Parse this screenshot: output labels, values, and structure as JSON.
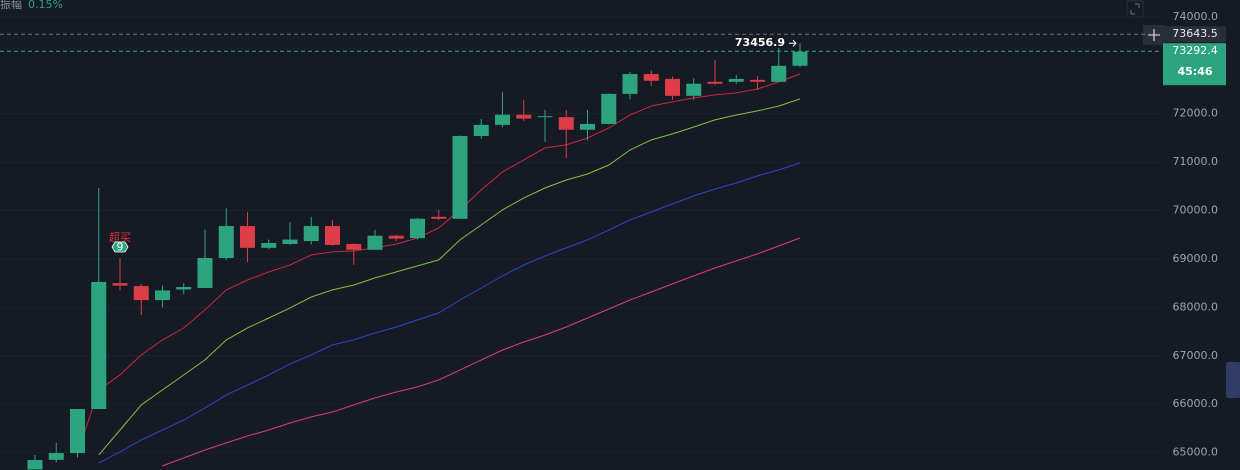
{
  "chart_data": {
    "type": "candlestick",
    "amplitude_label": "振幅",
    "amplitude_value": "0.15%",
    "ylim": [
      64640,
      74350
    ],
    "yticks": [
      {
        "value": 74000,
        "label": "74000.0"
      },
      {
        "value": 72000,
        "label": "72000.0"
      },
      {
        "value": 71000,
        "label": "71000.0"
      },
      {
        "value": 70000,
        "label": "70000.0"
      },
      {
        "value": 69000,
        "label": "69000.0"
      },
      {
        "value": 68000,
        "label": "68000.0"
      },
      {
        "value": 67000,
        "label": "67000.0"
      },
      {
        "value": 66000,
        "label": "66000.0"
      },
      {
        "value": 65000,
        "label": "65000.0"
      }
    ],
    "grid": true,
    "up_color": "#2ca57f",
    "down_color": "#dc3d47",
    "open": [
      64650,
      64850,
      64990,
      65900,
      68500,
      68440,
      68150,
      68370,
      68400,
      69020,
      69680,
      69230,
      69310,
      69370,
      69680,
      69310,
      69190,
      69480,
      69430,
      69870,
      69830,
      71540,
      71770,
      71980,
      71930,
      71930,
      71670,
      71790,
      72410,
      72820,
      72720,
      72370,
      72660,
      72660,
      72700,
      72660,
      72990
    ],
    "close": [
      64847,
      64990,
      65900,
      68525,
      68450,
      68150,
      68350,
      68420,
      69020,
      69680,
      69230,
      69330,
      69400,
      69680,
      69290,
      69190,
      69480,
      69420,
      69830,
      69830,
      71540,
      71770,
      71980,
      71900,
      71950,
      71670,
      71790,
      72410,
      72820,
      72680,
      72370,
      72620,
      72620,
      72720,
      72660,
      72990,
      73280
    ],
    "high": [
      64950,
      65200,
      65900,
      70467,
      69020,
      68480,
      68450,
      68500,
      69600,
      70050,
      69970,
      69400,
      69760,
      69870,
      69800,
      69320,
      69600,
      69500,
      69850,
      70010,
      71550,
      71890,
      72450,
      72290,
      72080,
      72080,
      72080,
      72420,
      72860,
      72900,
      72770,
      72740,
      73110,
      72800,
      72780,
      73360,
      73456.9
    ],
    "low": [
      64650,
      64800,
      64900,
      65900,
      68360,
      67840,
      68000,
      68270,
      68400,
      68980,
      68940,
      69200,
      69290,
      69300,
      69270,
      68880,
      69190,
      69370,
      69400,
      69800,
      69830,
      71480,
      71720,
      71850,
      71420,
      71090,
      71450,
      71780,
      72300,
      72574,
      72290,
      72290,
      72600,
      72620,
      72490,
      72650,
      72960
    ],
    "lines": [
      {
        "color": "#c8283c",
        "values": [
          null,
          null,
          64992,
          66294,
          66604,
          67017,
          67327,
          67575,
          67947,
          68360,
          68566,
          68732,
          68876,
          69083,
          69145,
          69166,
          69228,
          69310,
          69434,
          69641,
          70013,
          70426,
          70798,
          71046,
          71294,
          71356,
          71500,
          71707,
          71975,
          72161,
          72244,
          72327,
          72389,
          72430,
          72512,
          72657,
          72822
        ]
      },
      {
        "color": "#7fc43a",
        "values": [
          null,
          null,
          null,
          64951,
          65467,
          65984,
          66294,
          66604,
          66914,
          67327,
          67575,
          67781,
          67988,
          68215,
          68360,
          68463,
          68608,
          68732,
          68856,
          68980,
          69393,
          69703,
          70013,
          70261,
          70467,
          70632,
          70756,
          70942,
          71252,
          71459,
          71583,
          71727,
          71872,
          71975,
          72058,
          72161,
          72306
        ]
      },
      {
        "color": "#2a46c8",
        "values": [
          null,
          null,
          null,
          64786,
          65013,
          65261,
          65467,
          65674,
          65922,
          66191,
          66397,
          66604,
          66831,
          67017,
          67224,
          67327,
          67471,
          67595,
          67740,
          67885,
          68153,
          68401,
          68649,
          68876,
          69062,
          69228,
          69393,
          69599,
          69806,
          69971,
          70137,
          70302,
          70446,
          70570,
          70715,
          70839,
          70984
        ]
      },
      {
        "color": "#d8407a",
        "values": [
          null,
          null,
          null,
          null,
          null,
          null,
          64724,
          64889,
          65054,
          65199,
          65343,
          65467,
          65612,
          65736,
          65839,
          65984,
          66129,
          66252,
          66356,
          66500,
          66707,
          66914,
          67120,
          67285,
          67430,
          67595,
          67781,
          67967,
          68153,
          68318,
          68484,
          68649,
          68814,
          68959,
          69104,
          69269,
          69434
        ]
      }
    ],
    "high_price": 73456.9,
    "ref_price": 73643.5,
    "last_price": 73292.4,
    "countdown": "45:46",
    "signal": {
      "text": "超买",
      "count": 9
    }
  }
}
